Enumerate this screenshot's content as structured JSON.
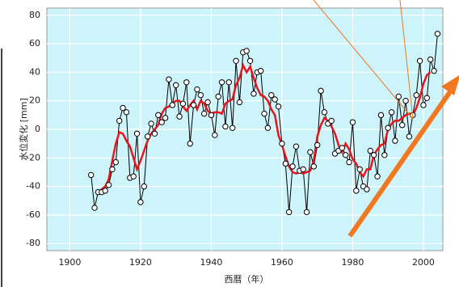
{
  "chart_data": {
    "type": "line",
    "x_label": "西暦（年）",
    "y_label": "水位変化 [mm]",
    "x": [
      1906,
      1907,
      1908,
      1909,
      1910,
      1911,
      1912,
      1913,
      1914,
      1915,
      1916,
      1917,
      1918,
      1919,
      1920,
      1921,
      1922,
      1923,
      1924,
      1925,
      1926,
      1927,
      1928,
      1929,
      1930,
      1931,
      1932,
      1933,
      1934,
      1935,
      1936,
      1937,
      1938,
      1939,
      1940,
      1941,
      1942,
      1943,
      1944,
      1945,
      1946,
      1947,
      1948,
      1949,
      1950,
      1951,
      1952,
      1953,
      1954,
      1955,
      1956,
      1957,
      1958,
      1959,
      1960,
      1961,
      1962,
      1963,
      1964,
      1965,
      1966,
      1967,
      1968,
      1969,
      1970,
      1971,
      1972,
      1973,
      1974,
      1975,
      1976,
      1977,
      1978,
      1979,
      1980,
      1981,
      1982,
      1983,
      1984,
      1985,
      1986,
      1987,
      1988,
      1989,
      1990,
      1991,
      1992,
      1993,
      1994,
      1995,
      1996,
      1997,
      1998,
      1999,
      2000,
      2001,
      2002,
      2003,
      2004
    ],
    "series": [
      {
        "color": "#000000",
        "values": [
          -32,
          -55,
          -44,
          -44,
          -43,
          -39,
          -28,
          -23,
          6,
          15,
          12,
          -34,
          -33,
          -3,
          -51,
          -40,
          -5,
          4,
          -3,
          10,
          5,
          8,
          35,
          17,
          31,
          9,
          18,
          33,
          -10,
          17,
          28,
          24,
          11,
          19,
          10,
          -4,
          23,
          33,
          2,
          33,
          1,
          48,
          19,
          54,
          55,
          48,
          25,
          40,
          41,
          11,
          1,
          24,
          21,
          16,
          -10,
          -24,
          -58,
          -26,
          -12,
          -29,
          -28,
          -58,
          -16,
          -26,
          -11,
          27,
          12,
          4,
          6,
          -17,
          -15,
          -13,
          -18,
          -23,
          5,
          -43,
          -28,
          -40,
          -42,
          -15,
          -18,
          -33,
          10,
          -18,
          1,
          12,
          -8,
          23,
          3,
          20,
          -5,
          10,
          24,
          48,
          17,
          22,
          49,
          41,
          67
        ]
      },
      {
        "color": "#e8141c",
        "values": [
          null,
          null,
          -45,
          -42,
          -40,
          -35,
          -22,
          -10,
          -2,
          -3,
          -8,
          -12,
          -20,
          -28,
          -22,
          -15,
          -8,
          -3,
          0,
          3,
          11,
          15,
          16,
          18,
          20,
          20,
          16,
          13,
          17,
          20,
          14,
          20,
          18,
          13,
          11,
          12,
          12,
          11,
          18,
          20,
          21,
          31,
          36,
          45,
          40,
          44,
          36,
          29,
          24,
          23,
          20,
          14,
          10,
          -4,
          -11,
          -19,
          -26,
          -30,
          -31,
          -30,
          -31,
          -30,
          -29,
          -22,
          -5,
          3,
          8,
          6,
          2,
          -3,
          -11,
          -16,
          -10,
          -14,
          -21,
          -24,
          -30,
          -33,
          -28,
          -28,
          -18,
          -14,
          -11,
          -10,
          0,
          4,
          6,
          6,
          8,
          10,
          11,
          10,
          15,
          22,
          32,
          38,
          40,
          null,
          null
        ]
      }
    ],
    "xlim": [
      1893.5,
      2005.5
    ],
    "ylim": [
      -85,
      85
    ],
    "xticks": [
      1900,
      1920,
      1940,
      1960,
      1980,
      2000
    ],
    "yticks": [
      -80,
      -60,
      -40,
      -20,
      0,
      20,
      40,
      60,
      80
    ],
    "grid": true
  }
}
